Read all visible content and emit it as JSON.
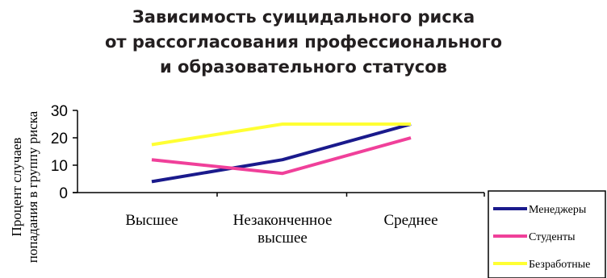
{
  "chart_data": {
    "type": "line",
    "title_lines": [
      "Зависимость суицидального риска",
      "от рассогласования профессионального",
      "и образовательного статусов"
    ],
    "ylabel_lines": [
      "Процент случаев",
      "попадания в группу риска"
    ],
    "categories": [
      "Высшее",
      "Незаконченное\nвысшее",
      "Среднее"
    ],
    "series": [
      {
        "name": "Менеджеры",
        "values": [
          4,
          12,
          25
        ],
        "color": "#1a1a8c"
      },
      {
        "name": "Студенты",
        "values": [
          12,
          7,
          20
        ],
        "color": "#f0409a"
      },
      {
        "name": "Безработные",
        "values": [
          17.5,
          25,
          25
        ],
        "color": "#ffff33"
      }
    ],
    "ylim": [
      0,
      30
    ],
    "yticks": [
      0,
      10,
      20,
      30
    ],
    "grid": false,
    "legend_position": "bottom-right"
  }
}
